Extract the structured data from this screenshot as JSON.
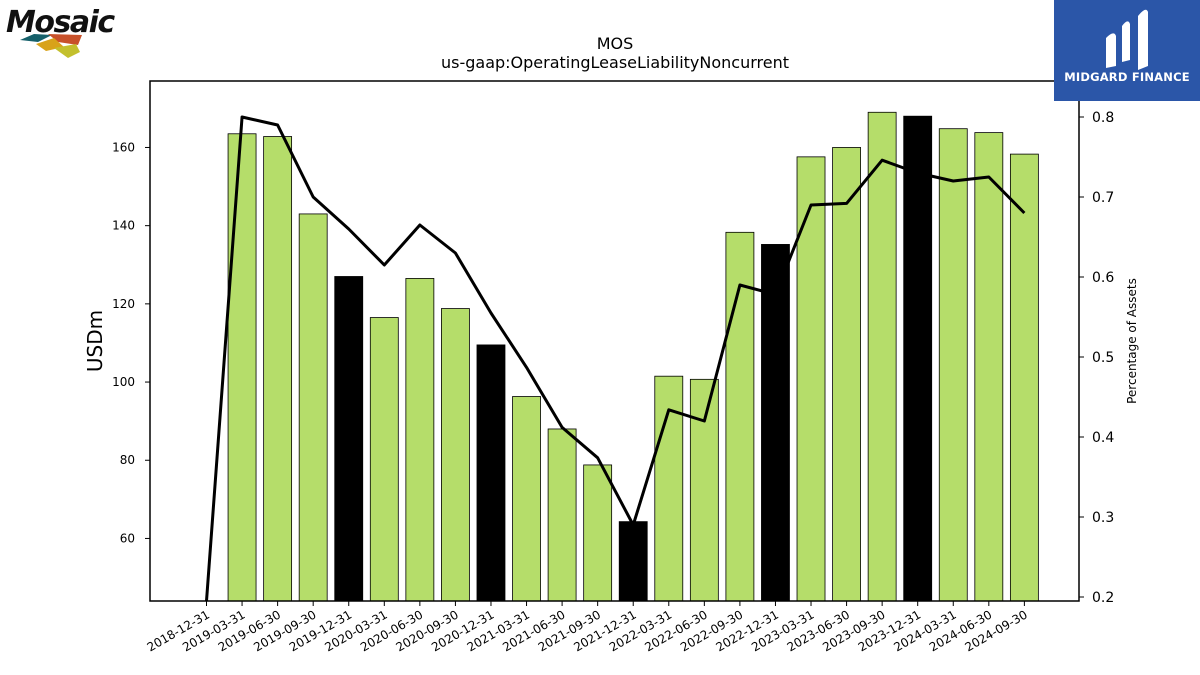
{
  "logos": {
    "company": "Mosaic",
    "publisher": "MIDGARD FINANCE"
  },
  "chart_data": {
    "type": "bar",
    "title": "MOS",
    "subtitle": "us-gaap:OperatingLeaseLiabilityNoncurrent",
    "ylabel": "USDm",
    "y2label": "Percentage of Assets",
    "ylim": [
      44,
      177
    ],
    "y2lim": [
      0.195,
      0.845
    ],
    "yticks": [
      60,
      80,
      100,
      120,
      140,
      160
    ],
    "y2ticks": [
      0.2,
      0.3,
      0.4,
      0.5,
      0.6,
      0.7,
      0.8
    ],
    "categories": [
      "2018-12-31",
      "2019-03-31",
      "2019-06-30",
      "2019-09-30",
      "2019-12-31",
      "2020-03-31",
      "2020-06-30",
      "2020-09-30",
      "2020-12-31",
      "2021-03-31",
      "2021-06-30",
      "2021-09-30",
      "2021-12-31",
      "2022-03-31",
      "2022-06-30",
      "2022-09-30",
      "2022-12-31",
      "2023-03-31",
      "2023-06-30",
      "2023-09-30",
      "2023-12-31",
      "2024-03-31",
      "2024-06-30",
      "2024-09-30"
    ],
    "series": [
      {
        "type": "bar",
        "values": [
          null,
          163.5,
          162.8,
          143.0,
          127.0,
          116.5,
          126.5,
          118.8,
          109.5,
          96.3,
          88.0,
          78.8,
          64.3,
          101.5,
          100.7,
          138.3,
          135.2,
          157.6,
          160.0,
          169.0,
          168.0,
          164.8,
          163.8,
          158.3
        ],
        "colors": {
          "default": "#b5dd6a",
          "year_end": "#000000"
        }
      },
      {
        "type": "line",
        "axis": "right",
        "color": "#000000",
        "values": [
          0.195,
          0.8,
          0.79,
          0.7,
          0.66,
          0.615,
          0.665,
          0.63,
          0.555,
          0.487,
          0.412,
          0.374,
          0.29,
          0.434,
          0.42,
          0.59,
          0.578,
          0.69,
          0.692,
          0.746,
          0.73,
          0.72,
          0.725,
          0.68
        ]
      }
    ]
  }
}
